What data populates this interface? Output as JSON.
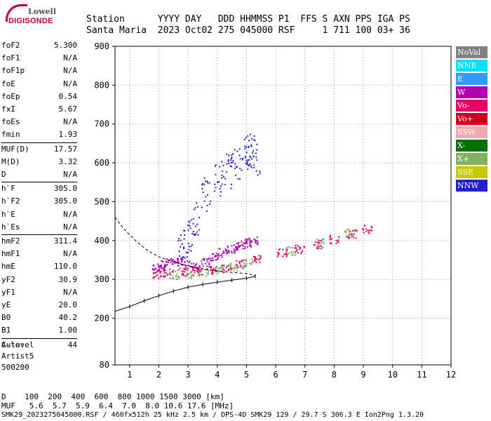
{
  "logo": {
    "top": "Lowell",
    "bottom": "DIGISONDE"
  },
  "header": {
    "line1": "Station      YYYY DAY   DDD HHMMSS P1  FFS S AXN PPS IGA PS",
    "line2": "Santa Maria  2023 Oct02 275 045000 RSF     1 711 100 03+ 36"
  },
  "params": [
    {
      "name": "foF2",
      "value": "5.300"
    },
    {
      "name": "foF1",
      "value": "N/A"
    },
    {
      "name": "foF1p",
      "value": "N/A"
    },
    {
      "name": "foE",
      "value": "N/A"
    },
    {
      "name": "foEp",
      "value": "0.54"
    },
    {
      "name": "fxI",
      "value": "5.67"
    },
    {
      "name": "foEs",
      "value": "N/A"
    },
    {
      "name": "fmin",
      "value": "1.93"
    },
    {
      "name": "MUF(D)",
      "value": "17.57"
    },
    {
      "name": "M(D)",
      "value": "3.32"
    },
    {
      "name": "D",
      "value": "N/A"
    },
    {
      "name": "h`F",
      "value": "305.0"
    },
    {
      "name": "h`F2",
      "value": "305.0"
    },
    {
      "name": "h`E",
      "value": "N/A"
    },
    {
      "name": "h`Es",
      "value": "N/A"
    },
    {
      "name": "hmF2",
      "value": "311.4"
    },
    {
      "name": "hmF1",
      "value": "N/A"
    },
    {
      "name": "hmE",
      "value": "110.0"
    },
    {
      "name": "yF2",
      "value": "30.9"
    },
    {
      "name": "yF1",
      "value": "N/A"
    },
    {
      "name": "yE",
      "value": "20.0"
    },
    {
      "name": "B0",
      "value": "40.2"
    },
    {
      "name": "B1",
      "value": "1.00"
    },
    {
      "name": "C-level",
      "value": "44"
    }
  ],
  "auto": {
    "line1": "Auto:",
    "line2": "Artist5",
    "line3": "500200"
  },
  "legend": [
    {
      "label": "NoVal",
      "color": "#808080"
    },
    {
      "label": "NNE",
      "color": "#00e0ff"
    },
    {
      "label": "E",
      "color": "#3399ff"
    },
    {
      "label": "W",
      "color": "#b000b0"
    },
    {
      "label": "Vo-",
      "color": "#e8006a"
    },
    {
      "label": "Vo+",
      "color": "#d0001a"
    },
    {
      "label": "SSW",
      "color": "#f4a8b0"
    },
    {
      "label": "X-",
      "color": "#007000"
    },
    {
      "label": "X+",
      "color": "#80b060"
    },
    {
      "label": "SSE",
      "color": "#c8c800"
    },
    {
      "label": "NNW",
      "color": "#2020d0"
    }
  ],
  "bottom": {
    "line1": "D    100  200  400  600  800 1000 1500 3000 [km]",
    "line2": "MUF   5.6  5.7  5.9  6.4  7.0  8.0 10.6 17.6 [MHz]"
  },
  "footer": "SMK29_2023275045000.RSF / 460fx512h 25 kHz 2.5 km / DPS-4D SMK29 129 / 29.7 S 306.3 E Ion2Png 1.3.20",
  "chart_data": {
    "type": "scatter",
    "xlim": [
      0.5,
      12
    ],
    "ylim": [
      80,
      900
    ],
    "xticks": [
      1,
      2,
      3,
      4,
      5,
      6,
      7,
      8,
      9,
      10,
      11,
      12
    ],
    "yticks": [
      80,
      200,
      300,
      400,
      500,
      600,
      700,
      800,
      900
    ],
    "grid": "dotted",
    "series": [
      {
        "name": "W",
        "color": "#b000b0",
        "x": [
          1.9,
          2.1,
          2.4,
          2.7,
          3.0,
          3.3,
          3.6,
          3.9,
          4.2,
          4.5,
          4.8,
          5.0,
          5.2
        ],
        "y": [
          330,
          340,
          345,
          348,
          338,
          332,
          345,
          360,
          370,
          380,
          390,
          395,
          400
        ]
      },
      {
        "name": "NNW",
        "color": "#2020d0",
        "x": [
          3.2,
          3.6,
          4.0,
          4.3,
          4.6,
          4.9,
          5.1,
          5.3,
          3.0,
          2.8
        ],
        "y": [
          460,
          520,
          560,
          580,
          600,
          620,
          640,
          610,
          420,
          380
        ]
      },
      {
        "name": "Vo-",
        "color": "#e8006a",
        "x": [
          1.9,
          2.3,
          2.8,
          3.3,
          3.8,
          4.3,
          4.8,
          5.3,
          6.2,
          6.8,
          7.4,
          8.0,
          8.6,
          9.1
        ],
        "y": [
          315,
          318,
          320,
          322,
          325,
          330,
          340,
          355,
          370,
          380,
          392,
          405,
          418,
          430
        ]
      },
      {
        "name": "X+",
        "color": "#80b060",
        "x": [
          2.5,
          3.0,
          3.5,
          4.0,
          4.5,
          5.0,
          6.5,
          7.5,
          8.5
        ],
        "y": [
          312,
          316,
          320,
          326,
          334,
          345,
          375,
          395,
          420
        ]
      }
    ],
    "profile": {
      "x": [
        0.5,
        1.0,
        1.5,
        2.0,
        2.5,
        3.0,
        3.5,
        4.0,
        4.5,
        5.0,
        5.3
      ],
      "y": [
        218,
        230,
        245,
        258,
        270,
        280,
        287,
        293,
        298,
        303,
        308
      ]
    },
    "dashed_trace": {
      "x": [
        0.5,
        0.8,
        1.2,
        1.6,
        2.0,
        2.5,
        3.0,
        3.5,
        4.0,
        4.5,
        5.0,
        5.3
      ],
      "y": [
        460,
        430,
        400,
        375,
        358,
        345,
        335,
        328,
        322,
        318,
        315,
        310
      ]
    }
  }
}
